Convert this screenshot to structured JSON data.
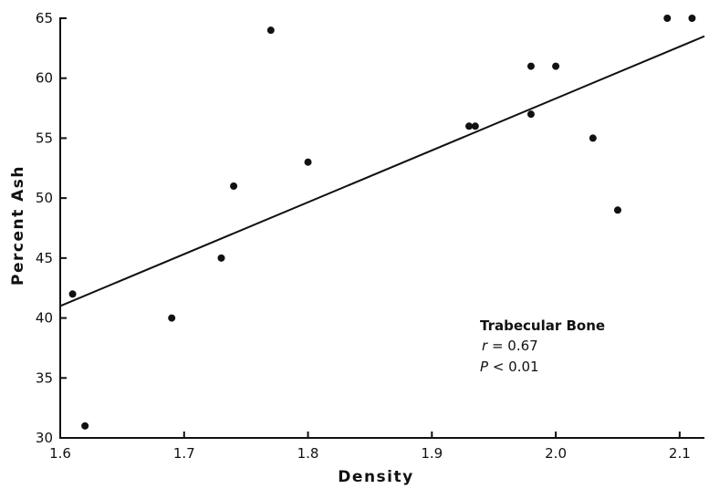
{
  "chart_data": {
    "type": "scatter",
    "xlabel": "Density",
    "ylabel": "Percent Ash",
    "xlim": [
      1.6,
      2.12
    ],
    "ylim": [
      30,
      65
    ],
    "x_ticks": [
      1.6,
      1.7,
      1.8,
      1.9,
      2.0,
      2.1
    ],
    "x_tick_labels": [
      "1.6",
      "1.7",
      "1.8",
      "1.9",
      "2.0",
      "2.1"
    ],
    "y_ticks": [
      30,
      35,
      40,
      45,
      50,
      55,
      60,
      65
    ],
    "y_tick_labels": [
      "30",
      "35",
      "40",
      "45",
      "50",
      "55",
      "60",
      "65"
    ],
    "grid": false,
    "points": [
      {
        "x": 1.61,
        "y": 42
      },
      {
        "x": 1.62,
        "y": 31
      },
      {
        "x": 1.69,
        "y": 40
      },
      {
        "x": 1.73,
        "y": 45
      },
      {
        "x": 1.74,
        "y": 51
      },
      {
        "x": 1.77,
        "y": 64
      },
      {
        "x": 1.8,
        "y": 53
      },
      {
        "x": 1.93,
        "y": 56
      },
      {
        "x": 1.935,
        "y": 56
      },
      {
        "x": 1.98,
        "y": 61
      },
      {
        "x": 1.98,
        "y": 57
      },
      {
        "x": 2.0,
        "y": 61
      },
      {
        "x": 2.03,
        "y": 55
      },
      {
        "x": 2.05,
        "y": 49
      },
      {
        "x": 2.09,
        "y": 65
      },
      {
        "x": 2.11,
        "y": 65
      }
    ],
    "trendline": {
      "x": [
        1.6,
        2.12
      ],
      "y": [
        41,
        63.5
      ]
    },
    "annotation": {
      "title": "Trabecular Bone",
      "r_symbol": "r",
      "r_value": "= 0.67",
      "p_symbol": "P",
      "p_value": "< 0.01"
    }
  }
}
